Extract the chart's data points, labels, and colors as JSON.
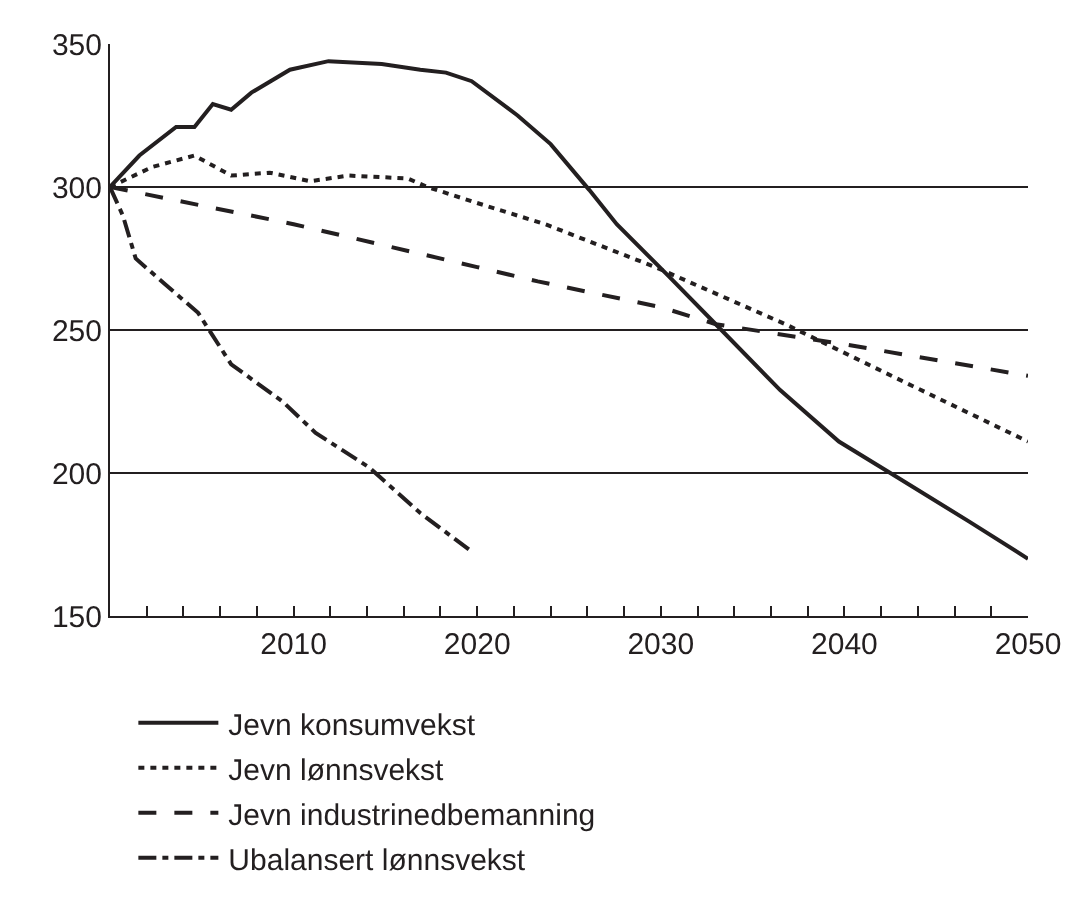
{
  "chart_data": {
    "type": "line",
    "xlim": [
      2000,
      2050
    ],
    "xticks": [
      {
        "value": 2002,
        "label": null
      },
      {
        "value": 2004,
        "label": null
      },
      {
        "value": 2006,
        "label": null
      },
      {
        "value": 2008,
        "label": null
      },
      2010,
      {
        "value": 2012,
        "label": null
      },
      {
        "value": 2014,
        "label": null
      },
      {
        "value": 2016,
        "label": null
      },
      {
        "value": 2018,
        "label": null
      },
      2020,
      {
        "value": 2022,
        "label": null
      },
      {
        "value": 2024,
        "label": null
      },
      {
        "value": 2026,
        "label": null
      },
      {
        "value": 2028,
        "label": null
      },
      2030,
      {
        "value": 2032,
        "label": null
      },
      {
        "value": 2034,
        "label": null
      },
      {
        "value": 2036,
        "label": null
      },
      {
        "value": 2038,
        "label": null
      },
      2040,
      {
        "value": 2042,
        "label": null
      },
      {
        "value": 2044,
        "label": null
      },
      {
        "value": 2046,
        "label": null
      },
      {
        "value": 2048,
        "label": null
      },
      2050
    ],
    "ylim": [
      150,
      350
    ],
    "yticks": [
      150,
      200,
      250,
      300,
      350
    ],
    "grid": "y",
    "legend": "bottom",
    "series": [
      {
        "name": "Jevn konsumvekst",
        "color": "#231f20",
        "line_style": "solid",
        "x": [
          2000,
          2001.6,
          2003.6,
          2004.6,
          2005.6,
          2006.6,
          2007.7,
          2009.8,
          2011.9,
          2014.8,
          2016.9,
          2018.3,
          2019.7,
          2022.2,
          2024,
          2026.1,
          2027.6,
          2030.4,
          2033.3,
          2036.5,
          2039.7,
          2042.5,
          2046.8,
          2050
        ],
        "values": [
          300,
          311,
          321,
          321,
          329,
          327,
          333,
          341,
          344,
          343,
          341,
          340,
          337,
          325,
          315,
          299,
          287,
          269,
          250,
          229,
          211,
          200,
          183,
          170
        ]
      },
      {
        "name": "Jevn lønnsvekst",
        "color": "#231f20",
        "line_style": "dotted",
        "x": [
          2000,
          2002.3,
          2004.6,
          2006.6,
          2008.7,
          2010.9,
          2013,
          2016.2,
          2017.3,
          2019.7,
          2022.2,
          2023.7,
          2029.7,
          2036.8,
          2043.2,
          2050
        ],
        "values": [
          300,
          307,
          311,
          304,
          305,
          302,
          304,
          303,
          300,
          295,
          290,
          287,
          272,
          252,
          232,
          211
        ]
      },
      {
        "name": "Jevn industrinedbemanning",
        "color": "#231f20",
        "line_style": "dashed",
        "x": [
          2000,
          2010,
          2020,
          2023.3,
          2030,
          2033,
          2040,
          2050
        ],
        "values": [
          300,
          287,
          272,
          267,
          258,
          252,
          245,
          234
        ]
      },
      {
        "name": "Ubalansert lønnsvekst",
        "color": "#231f20",
        "line_style": "dashdot",
        "x": [
          2000,
          2000.7,
          2001.4,
          2003,
          2004.8,
          2006.6,
          2009.4,
          2011.2,
          2014.1,
          2016.9,
          2019.6
        ],
        "values": [
          300,
          290,
          275,
          266,
          256,
          238,
          225,
          214,
          202,
          186,
          173
        ]
      }
    ]
  }
}
